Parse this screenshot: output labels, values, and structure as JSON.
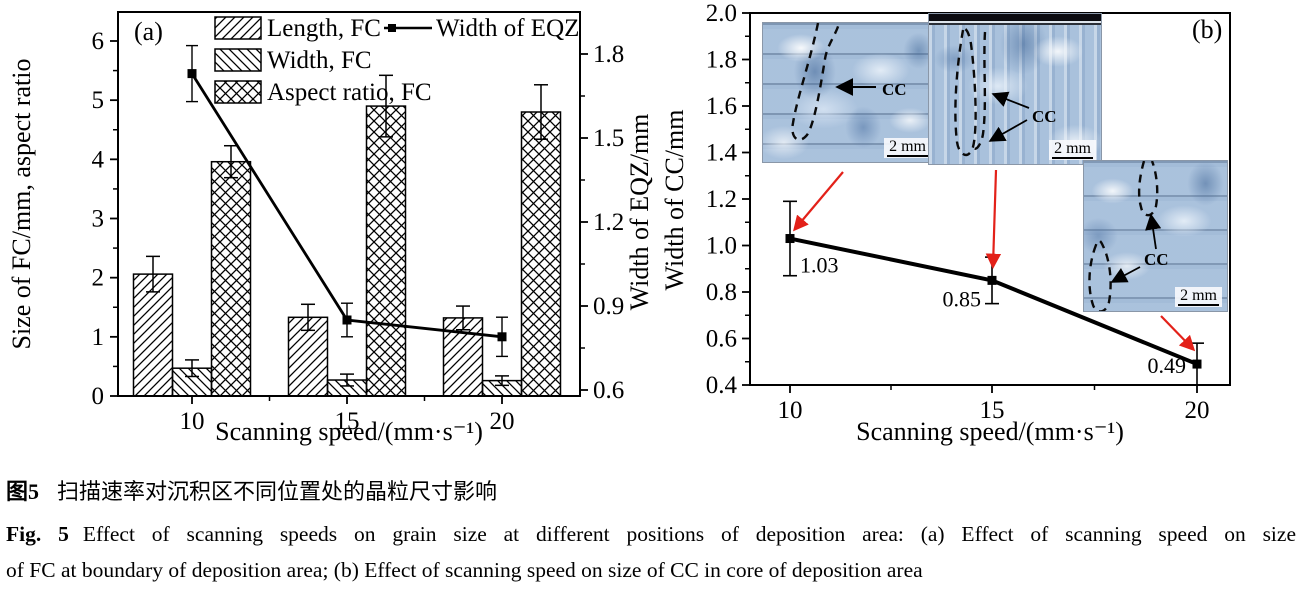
{
  "chart_data": [
    {
      "type": "bar",
      "panel_label": "(a)",
      "categories": [
        10,
        15,
        20
      ],
      "xlabel": "Scanning speed/(mm·s⁻¹)",
      "ylabel_left": "Size of FC/mm, aspect ratio",
      "ylabel_right": "Width of EQZ/mm",
      "ylim_left": [
        0,
        6
      ],
      "yticks_left": [
        0,
        1,
        2,
        3,
        4,
        5,
        6
      ],
      "ylim_right": [
        0.6,
        1.8
      ],
      "yticks_right": [
        0.6,
        0.9,
        1.2,
        1.5,
        1.8
      ],
      "legend_position": "top-left-inside",
      "grid": false,
      "series": [
        {
          "name": "Length, FC",
          "hatch": "diag-up",
          "values": [
            2.06,
            1.33,
            1.32
          ],
          "errors": [
            0.3,
            0.22,
            0.2
          ]
        },
        {
          "name": "Width, FC",
          "hatch": "diag-down",
          "values": [
            0.47,
            0.27,
            0.26
          ],
          "errors": [
            0.14,
            0.1,
            0.08
          ]
        },
        {
          "name": "Aspect ratio, FC",
          "hatch": "cross",
          "values": [
            3.96,
            4.9,
            4.8
          ],
          "errors": [
            0.27,
            0.52,
            0.46
          ]
        }
      ],
      "line_series": {
        "name": "Width of EQZ",
        "axis": "right",
        "values": [
          1.73,
          0.85,
          0.79
        ],
        "errors": [
          0.1,
          0.06,
          0.07
        ]
      }
    },
    {
      "type": "line",
      "panel_label": "(b)",
      "x": [
        10,
        15,
        20
      ],
      "values": [
        1.03,
        0.85,
        0.49
      ],
      "errors": [
        0.16,
        0.1,
        0.09
      ],
      "point_labels": [
        "1.03",
        "0.85",
        "0.49"
      ],
      "xlabel": "Scanning speed/(mm·s⁻¹)",
      "ylabel": "Width of CC/mm",
      "ylim": [
        0.4,
        2.0
      ],
      "yticks": [
        0.4,
        0.6,
        0.8,
        1.0,
        1.2,
        1.4,
        1.6,
        1.8,
        2.0
      ],
      "grid": false,
      "annotation_color": "#e32119",
      "insets": [
        {
          "label": "CC",
          "scale_bar": "2 mm"
        },
        {
          "label": "CC",
          "scale_bar": "2 mm"
        },
        {
          "label": "CC",
          "scale_bar": "2 mm"
        }
      ]
    }
  ],
  "caption": {
    "zh_prefix": "图5",
    "zh_text": "扫描速率对沉积区不同位置处的晶粒尺寸影响",
    "en_prefix": "Fig. 5",
    "en_line1": "Effect of scanning speeds on grain size at different positions of deposition area: (a) Effect of scanning speed on size",
    "en_line2": "of FC at boundary of deposition area; (b) Effect of scanning speed on size of CC in core of deposition area"
  }
}
